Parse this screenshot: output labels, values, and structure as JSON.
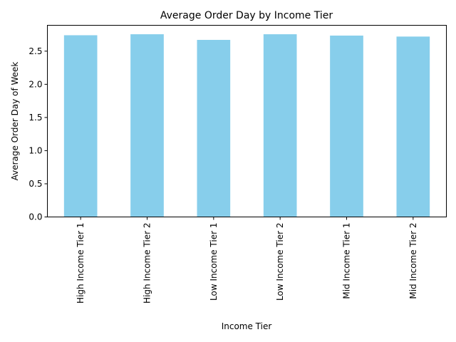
{
  "chart_data": {
    "type": "bar",
    "title": "Average Order Day by Income Tier",
    "xlabel": "Income Tier",
    "ylabel": "Average Order Day of Week",
    "categories": [
      "High Income Tier 1",
      "High Income Tier 2",
      "Low Income Tier 1",
      "Low Income Tier 2",
      "Mid Income Tier 1",
      "Mid Income Tier 2"
    ],
    "values": [
      2.74,
      2.755,
      2.67,
      2.755,
      2.735,
      2.72
    ],
    "ylim": [
      0,
      2.89
    ],
    "yticks": [
      "0.0",
      "0.5",
      "1.0",
      "1.5",
      "2.0",
      "2.5"
    ],
    "bar_color": "#87ceeb",
    "grid": false,
    "legend": "none"
  }
}
